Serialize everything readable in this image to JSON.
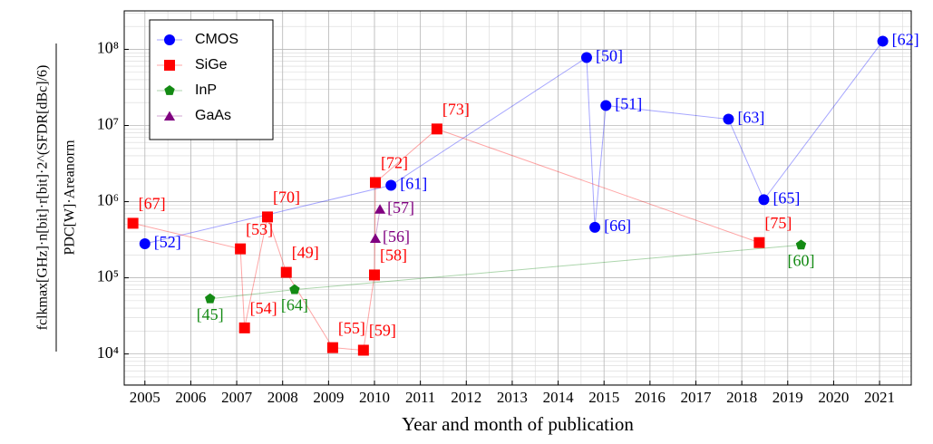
{
  "chart_data": {
    "type": "scatter",
    "x_label": "Year and month of publication",
    "y_label": {
      "numerator": "fclkmax[GHz]·n[bit]·r[bit]·2^(SFDR[dBc]/6)",
      "denominator": "PDC[W]·Areanorm"
    },
    "xlim": [
      2004.55,
      2021.69
    ],
    "xticks": [
      2005,
      2006,
      2007,
      2008,
      2009,
      2010,
      2011,
      2012,
      2013,
      2014,
      2015,
      2016,
      2017,
      2018,
      2019,
      2020,
      2021
    ],
    "ylim": [
      3900,
      320000000
    ],
    "log_y": true,
    "yticks": [
      {
        "value": 10000,
        "label": "10⁴"
      },
      {
        "value": 100000,
        "label": "10⁵"
      },
      {
        "value": 1000000,
        "label": "10⁶"
      },
      {
        "value": 10000000,
        "label": "10⁷"
      },
      {
        "value": 100000000,
        "label": "10⁸"
      }
    ],
    "grid": true,
    "legend": "upper left",
    "series": [
      {
        "name": "CMOS",
        "color": "#0000ff",
        "marker": "circle",
        "x": [
          2005.0,
          2010.36,
          2014.62,
          2014.8,
          2015.04,
          2017.71,
          2018.48,
          2021.07
        ],
        "values": [
          280000,
          1640000,
          78000000,
          460000,
          18300000,
          12100000,
          1060000,
          128000000
        ],
        "labels": [
          "[52]",
          "[61]",
          "[50]",
          "[66]",
          "[51]",
          "[63]",
          "[65]",
          "[62]"
        ]
      },
      {
        "name": "SiGe",
        "color": "#ff0000",
        "marker": "square",
        "x": [
          2004.74,
          2007.08,
          2007.17,
          2007.67,
          2008.08,
          2009.09,
          2009.76,
          2010.0,
          2010.02,
          2011.36,
          2018.38
        ],
        "values": [
          520000,
          240000,
          22000,
          630000,
          118000,
          12100,
          11200,
          109000,
          1780000,
          9000000,
          290000
        ],
        "labels": [
          "[67]",
          "[53]",
          "[54]",
          "[70]",
          "[49]",
          "[55]",
          "[59]",
          "[58]",
          "[72]",
          "[73]",
          "[75]"
        ]
      },
      {
        "name": "InP",
        "color": "#138a13",
        "marker": "pentagon",
        "x": [
          2006.42,
          2008.26,
          2019.29
        ],
        "values": [
          53000,
          70000,
          270000
        ],
        "labels": [
          "[45]",
          "[64]",
          "[60]"
        ]
      },
      {
        "name": "GaAs",
        "color": "#800080",
        "marker": "triangle",
        "x": [
          2010.02,
          2010.12
        ],
        "values": [
          330000,
          800000
        ],
        "labels": [
          "[56]",
          "[57]"
        ]
      }
    ]
  }
}
